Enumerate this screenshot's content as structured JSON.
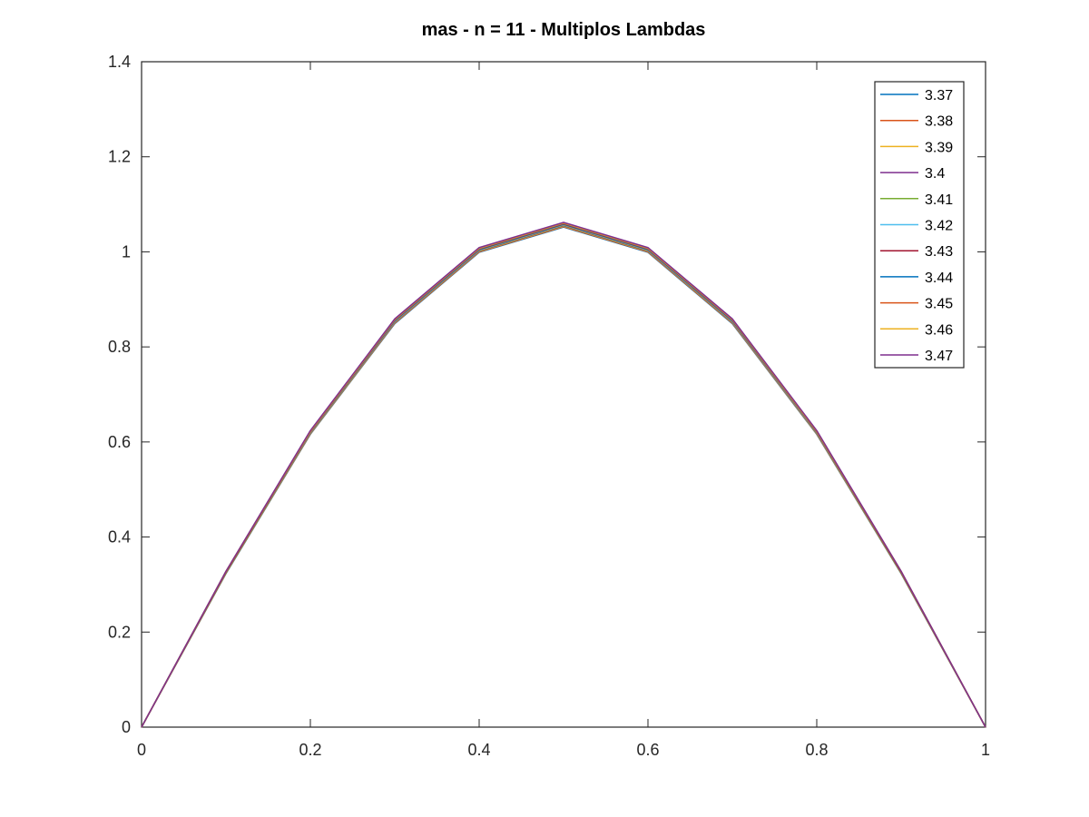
{
  "chart_data": {
    "type": "line",
    "title": "mas - n = 11 - Multiplos Lambdas",
    "xlabel": "",
    "ylabel": "",
    "xlim": [
      0,
      1
    ],
    "ylim": [
      0,
      1.4
    ],
    "x_ticks": [
      "0",
      "0.2",
      "0.4",
      "0.6",
      "0.8",
      "1"
    ],
    "y_ticks": [
      "0",
      "0.2",
      "0.4",
      "0.6",
      "0.8",
      "1",
      "1.2",
      "1.4"
    ],
    "x_tick_values": [
      0,
      0.2,
      0.4,
      0.6,
      0.8,
      1
    ],
    "y_tick_values": [
      0,
      0.2,
      0.4,
      0.6,
      0.8,
      1,
      1.2,
      1.4
    ],
    "grid": false,
    "legend_position": "top-right",
    "x": [
      0,
      0.1,
      0.2,
      0.3,
      0.4,
      0.5,
      0.6,
      0.7,
      0.8,
      0.9,
      1.0
    ],
    "series": [
      {
        "name": "3.37",
        "color": "#0072BD",
        "values": [
          0,
          0.323,
          0.616,
          0.849,
          0.999,
          1.052,
          0.999,
          0.849,
          0.616,
          0.323,
          0
        ]
      },
      {
        "name": "3.38",
        "color": "#D95319",
        "values": [
          0,
          0.324,
          0.617,
          0.85,
          1.0,
          1.053,
          1.0,
          0.85,
          0.617,
          0.324,
          0
        ]
      },
      {
        "name": "3.39",
        "color": "#EDB120",
        "values": [
          0,
          0.324,
          0.617,
          0.851,
          1.001,
          1.054,
          1.001,
          0.851,
          0.617,
          0.324,
          0
        ]
      },
      {
        "name": "3.4",
        "color": "#7E2F8E",
        "values": [
          0,
          0.325,
          0.618,
          0.852,
          1.002,
          1.055,
          1.002,
          0.852,
          0.618,
          0.325,
          0
        ]
      },
      {
        "name": "3.41",
        "color": "#77AC30",
        "values": [
          0,
          0.325,
          0.619,
          0.853,
          1.003,
          1.056,
          1.003,
          0.853,
          0.619,
          0.325,
          0
        ]
      },
      {
        "name": "3.42",
        "color": "#4DBEEE",
        "values": [
          0,
          0.326,
          0.62,
          0.854,
          1.004,
          1.057,
          1.004,
          0.854,
          0.62,
          0.326,
          0
        ]
      },
      {
        "name": "3.43",
        "color": "#A2142F",
        "values": [
          0,
          0.326,
          0.621,
          0.855,
          1.005,
          1.058,
          1.005,
          0.855,
          0.621,
          0.326,
          0
        ]
      },
      {
        "name": "3.44",
        "color": "#0072BD",
        "values": [
          0,
          0.327,
          0.622,
          0.856,
          1.006,
          1.059,
          1.006,
          0.856,
          0.622,
          0.327,
          0
        ]
      },
      {
        "name": "3.45",
        "color": "#D95319",
        "values": [
          0,
          0.327,
          0.622,
          0.857,
          1.007,
          1.06,
          1.007,
          0.857,
          0.622,
          0.327,
          0
        ]
      },
      {
        "name": "3.46",
        "color": "#EDB120",
        "values": [
          0,
          0.328,
          0.623,
          0.858,
          1.008,
          1.061,
          1.008,
          0.858,
          0.623,
          0.328,
          0
        ]
      },
      {
        "name": "3.47",
        "color": "#7E2F8E",
        "values": [
          0,
          0.328,
          0.624,
          0.859,
          1.009,
          1.062,
          1.009,
          0.859,
          0.624,
          0.328,
          0
        ]
      }
    ]
  }
}
